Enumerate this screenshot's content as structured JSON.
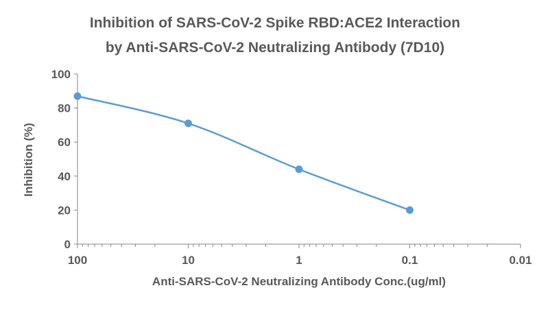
{
  "chart_data": {
    "type": "line",
    "title": [
      "Inhibition of SARS-CoV-2 Spike RBD:ACE2 Interaction",
      "by Anti-SARS-CoV-2 Neutralizing Antibody (7D10)"
    ],
    "xlabel": "Anti-SARS-CoV-2 Neutralizing Antibody Conc.(ug/ml)",
    "ylabel": "Inhibition (%)",
    "x_scale": "log",
    "x_reversed": true,
    "xlim": [
      100,
      0.01
    ],
    "ylim": [
      0,
      100
    ],
    "x_ticks": [
      "100",
      "10",
      "1",
      "0.1",
      "0.01"
    ],
    "y_ticks": [
      "0",
      "20",
      "40",
      "60",
      "80",
      "100"
    ],
    "grid": false,
    "smoothed": true,
    "color": "#5B9BD5",
    "series": [
      {
        "x": [
          100,
          10,
          1,
          0.1
        ],
        "y": [
          87,
          71,
          44,
          20
        ]
      }
    ]
  }
}
